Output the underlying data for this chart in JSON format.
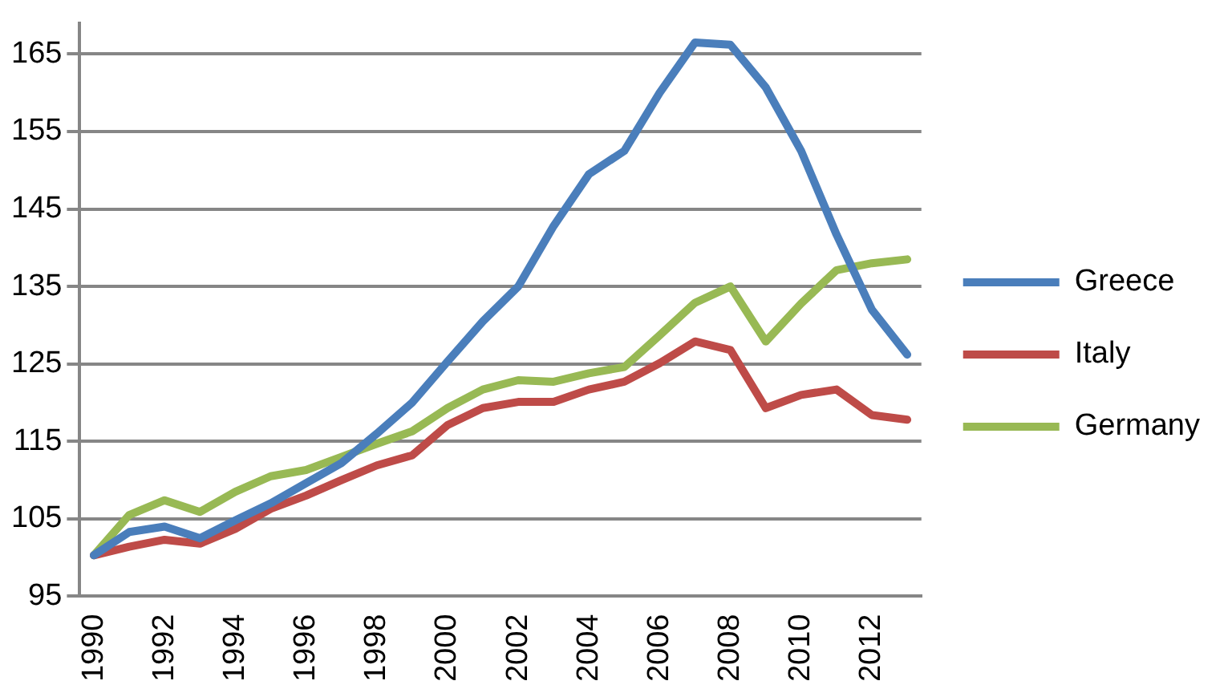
{
  "chart_data": {
    "type": "line",
    "x": [
      1990,
      1991,
      1992,
      1993,
      1994,
      1995,
      1996,
      1997,
      1998,
      1999,
      2000,
      2001,
      2002,
      2003,
      2004,
      2005,
      2006,
      2007,
      2008,
      2009,
      2010,
      2011,
      2012,
      2013
    ],
    "series": [
      {
        "name": "Greece",
        "color": "#4a7ebb",
        "values": [
          100.3,
          103.3,
          104,
          102.5,
          104.8,
          107,
          109.6,
          112.2,
          116,
          120,
          125.3,
          130.5,
          135,
          142.8,
          149.5,
          152.5,
          160,
          166.5,
          166.2,
          160.7,
          152.5,
          141.7,
          132,
          126.2
        ]
      },
      {
        "name": "Italy",
        "color": "#be4b48",
        "values": [
          100.3,
          101.4,
          102.3,
          101.8,
          103.7,
          106.3,
          108,
          110,
          111.9,
          113.2,
          117.1,
          119.3,
          120.1,
          120.1,
          121.7,
          122.7,
          125.1,
          127.9,
          126.8,
          119.3,
          121,
          121.7,
          118.4,
          117.8
        ]
      },
      {
        "name": "Germany",
        "color": "#98b954",
        "values": [
          100.3,
          105.5,
          107.4,
          105.9,
          108.5,
          110.5,
          111.3,
          113,
          114.7,
          116.3,
          119.3,
          121.7,
          122.9,
          122.7,
          123.8,
          124.6,
          128.7,
          132.9,
          135,
          127.9,
          132.8,
          137.1,
          138,
          138.5
        ]
      }
    ],
    "xlim": [
      1989.6,
      2013.4
    ],
    "xticks": [
      1990,
      1992,
      1994,
      1996,
      1998,
      2000,
      2002,
      2004,
      2006,
      2008,
      2010,
      2012
    ],
    "ylim": [
      95,
      169
    ],
    "yticks": [
      95,
      105,
      115,
      125,
      135,
      145,
      155,
      165
    ],
    "grid": "y",
    "legend": "right",
    "marker": "none",
    "line_style": "solid"
  }
}
